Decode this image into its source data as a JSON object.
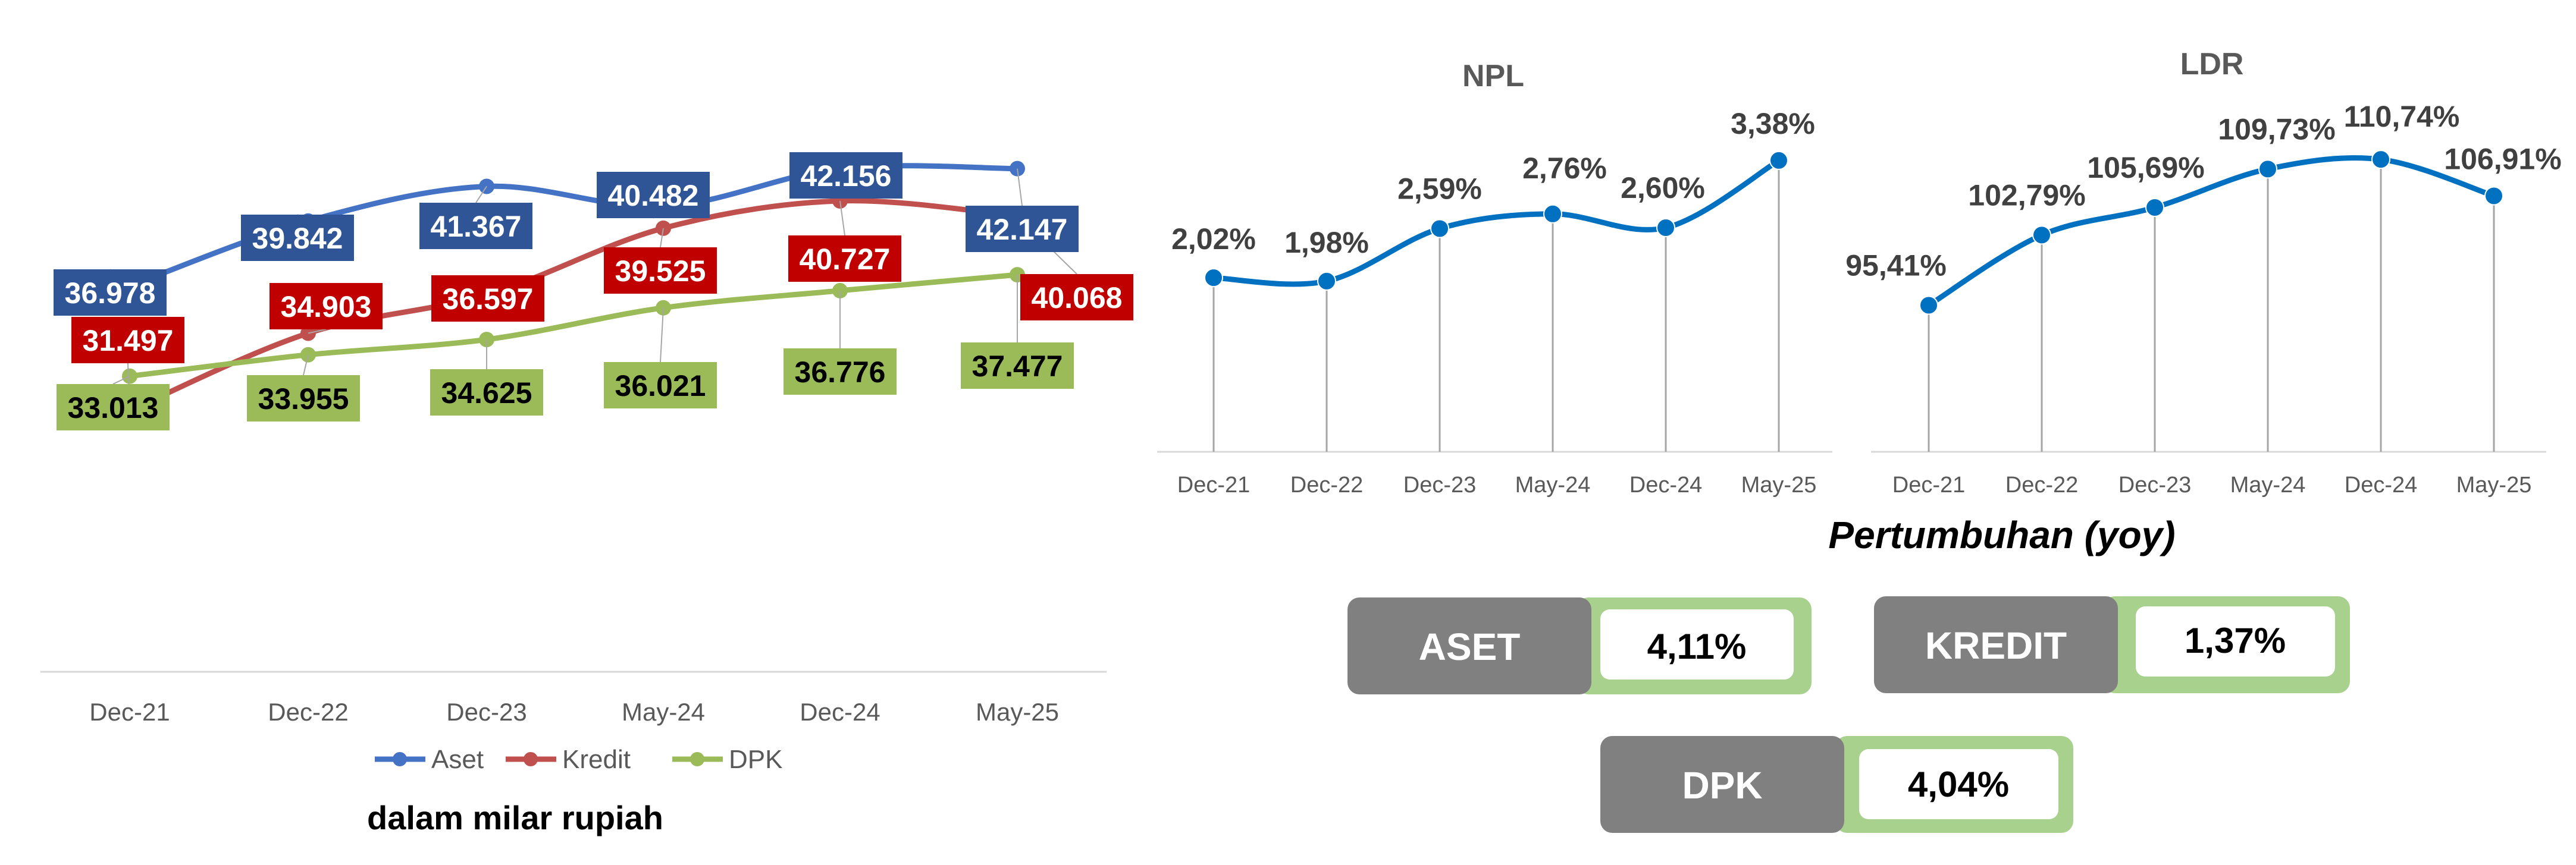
{
  "chart_data": [
    {
      "type": "line",
      "categories": [
        "Dec-21",
        "Dec-22",
        "Dec-23",
        "May-24",
        "Dec-24",
        "May-25"
      ],
      "series": [
        {
          "name": "Aset",
          "color": "#4472C4",
          "label_color": "#2F5597",
          "label_text_color": "#FFFFFF",
          "values": [
            36978,
            39842,
            41367,
            40482,
            42156,
            42147
          ],
          "labels": [
            "36.978",
            "39.842",
            "41.367",
            "40.482",
            "42.156",
            "42.147"
          ]
        },
        {
          "name": "Kredit",
          "color": "#C0504D",
          "label_color": "#C00000",
          "label_text_color": "#FFFFFF",
          "values": [
            31497,
            34903,
            36597,
            39525,
            40727,
            40068
          ],
          "labels": [
            "31.497",
            "34.903",
            "36.597",
            "39.525",
            "40.727",
            "40.068"
          ]
        },
        {
          "name": "DPK",
          "color": "#9BBB59",
          "label_color": "#9BBB59",
          "label_text_color": "#000000",
          "values": [
            33013,
            33955,
            34625,
            36021,
            36776,
            37477
          ],
          "labels": [
            "33.013",
            "33.955",
            "34.625",
            "36.021",
            "36.776",
            "37.477"
          ]
        }
      ],
      "ylim": [
        20000,
        48000
      ],
      "legend": "bottom",
      "grid": false,
      "note": "dalam milar rupiah"
    },
    {
      "type": "line",
      "title": "NPL",
      "categories": [
        "Dec-21",
        "Dec-22",
        "Dec-23",
        "May-24",
        "Dec-24",
        "May-25"
      ],
      "series": [
        {
          "color": "#0070C0",
          "values": [
            2.02,
            1.98,
            2.59,
            2.76,
            2.6,
            3.38
          ],
          "labels": [
            "2,02%",
            "1,98%",
            "2,59%",
            "2,76%",
            "2,60%",
            "3,38%"
          ]
        }
      ],
      "ylim": [
        0,
        4
      ],
      "grid": false,
      "drop_lines": true
    },
    {
      "type": "line",
      "title": "LDR",
      "categories": [
        "Dec-21",
        "Dec-22",
        "Dec-23",
        "May-24",
        "Dec-24",
        "May-25"
      ],
      "series": [
        {
          "color": "#0070C0",
          "values": [
            95.41,
            102.79,
            105.69,
            109.73,
            110.74,
            106.91
          ],
          "labels": [
            "95,41%",
            "102,79%",
            "105,69%",
            "109,73%",
            "110,74%",
            "106,91%"
          ]
        }
      ],
      "ylim": [
        80,
        115
      ],
      "grid": false,
      "drop_lines": true
    }
  ],
  "growth": {
    "title": "Pertumbuhan (yoy)",
    "cards": [
      {
        "label": "ASET",
        "value": "4,11%"
      },
      {
        "label": "KREDIT",
        "value": "1,37%"
      },
      {
        "label": "DPK",
        "value": "4,04%"
      }
    ],
    "colors": {
      "label_bg": "#808080",
      "value_bg": "#A9D18E",
      "value_inner": "#FFFFFF"
    }
  }
}
